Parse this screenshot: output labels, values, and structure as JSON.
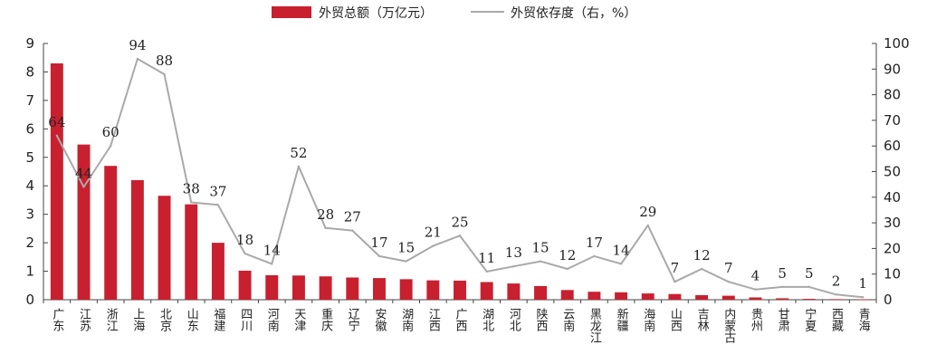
{
  "chart_data": {
    "type": "bar+line",
    "categories": [
      "广东",
      "江苏",
      "浙江",
      "上海",
      "北京",
      "山东",
      "福建",
      "四川",
      "河南",
      "天津",
      "重庆",
      "辽宁",
      "安徽",
      "湖南",
      "江西",
      "广西",
      "湖北",
      "河北",
      "陕西",
      "云南",
      "黑龙江",
      "新疆",
      "海南",
      "山西",
      "吉林",
      "内蒙古",
      "贵州",
      "甘肃",
      "宁夏",
      "西藏",
      "青海"
    ],
    "series": [
      {
        "name": "外贸总额（万亿元）",
        "type": "bar",
        "axis": "left",
        "color": "#c8202f",
        "values": [
          8.3,
          5.45,
          4.7,
          4.2,
          3.65,
          3.35,
          2.0,
          1.02,
          0.86,
          0.85,
          0.82,
          0.78,
          0.76,
          0.72,
          0.68,
          0.67,
          0.62,
          0.57,
          0.48,
          0.34,
          0.28,
          0.26,
          0.22,
          0.2,
          0.16,
          0.14,
          0.08,
          0.05,
          0.03,
          0.02,
          0.01
        ]
      },
      {
        "name": "外贸依存度（右，%）",
        "type": "line",
        "axis": "right",
        "color": "#a9a9a9",
        "values": [
          64,
          44,
          60,
          94,
          88,
          38,
          37,
          18,
          14,
          52,
          28,
          27,
          17,
          15,
          21,
          25,
          11,
          13,
          15,
          12,
          17,
          14,
          29,
          7,
          12,
          7,
          4,
          5,
          5,
          2,
          1
        ],
        "labels": [
          "64",
          "44",
          "60",
          "94",
          "88",
          "38",
          "37",
          "18",
          "14",
          "52",
          "28",
          "27",
          "17",
          "15",
          "21",
          "25",
          "11",
          "13",
          "15",
          "12",
          "17",
          "14",
          "29",
          "7",
          "12",
          "7",
          "4",
          "5",
          "5",
          "2",
          "1"
        ]
      }
    ],
    "y_left": {
      "min": 0,
      "max": 9,
      "ticks": [
        "0",
        "1",
        "2",
        "3",
        "4",
        "5",
        "6",
        "7",
        "8",
        "9"
      ]
    },
    "y_right": {
      "min": 0,
      "max": 100,
      "ticks": [
        "0",
        "10",
        "20",
        "30",
        "40",
        "50",
        "60",
        "70",
        "80",
        "90",
        "100"
      ]
    },
    "legend": {
      "position": "top-center"
    },
    "grid": false
  }
}
